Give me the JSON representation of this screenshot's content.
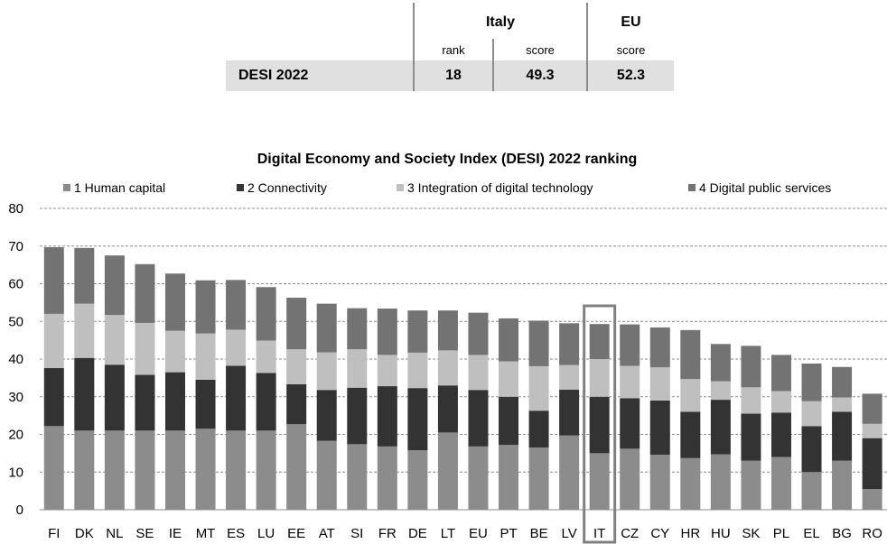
{
  "summary_table": {
    "italy_header": "Italy",
    "eu_header": "EU",
    "col_rank": "rank",
    "col_score": "score",
    "col_eu_score": "score",
    "row_label": "DESI 2022",
    "italy_rank": "18",
    "italy_score": "49.3",
    "eu_score": "52.3"
  },
  "chart_data": {
    "type": "bar",
    "stacked": true,
    "title": "Digital Economy and Society Index (DESI) 2022 ranking",
    "xlabel": "",
    "ylabel": "",
    "ylim": [
      0,
      80
    ],
    "yticks": [
      "0",
      "10",
      "20",
      "30",
      "40",
      "50",
      "60",
      "70",
      "80"
    ],
    "grid": true,
    "legend_position": "top",
    "highlight_category": "IT",
    "categories": [
      "FI",
      "DK",
      "NL",
      "SE",
      "IE",
      "MT",
      "ES",
      "LU",
      "EE",
      "AT",
      "SI",
      "FR",
      "DE",
      "LT",
      "EU",
      "PT",
      "BE",
      "LV",
      "IT",
      "CZ",
      "CY",
      "HR",
      "HU",
      "SK",
      "PL",
      "EL",
      "BG",
      "RO"
    ],
    "series": [
      {
        "name": "1 Human capital",
        "color": "#8c8c8c",
        "values": [
          22.2,
          21.0,
          21.0,
          21.0,
          21.0,
          21.5,
          21.0,
          21.0,
          22.7,
          18.3,
          17.4,
          16.8,
          15.8,
          20.5,
          16.8,
          17.2,
          16.5,
          19.7,
          15.0,
          16.2,
          14.6,
          13.7,
          14.7,
          13.0,
          14.0,
          10.0,
          13.0,
          5.5
        ]
      },
      {
        "name": "2 Connectivity",
        "color": "#333333",
        "values": [
          15.4,
          19.3,
          17.5,
          14.8,
          15.5,
          13.0,
          17.2,
          15.3,
          10.6,
          13.5,
          15.0,
          16.0,
          16.5,
          12.5,
          15.0,
          12.8,
          9.8,
          12.2,
          15.0,
          13.4,
          14.4,
          12.3,
          14.5,
          12.5,
          11.8,
          12.2,
          13.0,
          13.5
        ]
      },
      {
        "name": "3 Integration of digital technology",
        "color": "#bfbfbf",
        "values": [
          14.4,
          14.4,
          13.2,
          13.8,
          11.0,
          12.3,
          9.6,
          8.6,
          9.3,
          10.0,
          10.2,
          8.3,
          9.4,
          9.3,
          9.3,
          9.4,
          11.8,
          6.5,
          10.0,
          8.6,
          8.8,
          8.7,
          4.9,
          7.0,
          5.7,
          6.6,
          3.8,
          3.8
        ]
      },
      {
        "name": "4 Digital public services",
        "color": "#737373",
        "values": [
          17.7,
          14.8,
          15.8,
          15.6,
          15.2,
          14.1,
          13.2,
          14.2,
          13.7,
          12.9,
          10.9,
          12.3,
          11.2,
          10.6,
          11.2,
          11.4,
          12.1,
          11.1,
          9.3,
          11.0,
          10.6,
          13.0,
          9.9,
          11.0,
          9.6,
          10.0,
          8.1,
          8.0
        ]
      }
    ]
  }
}
